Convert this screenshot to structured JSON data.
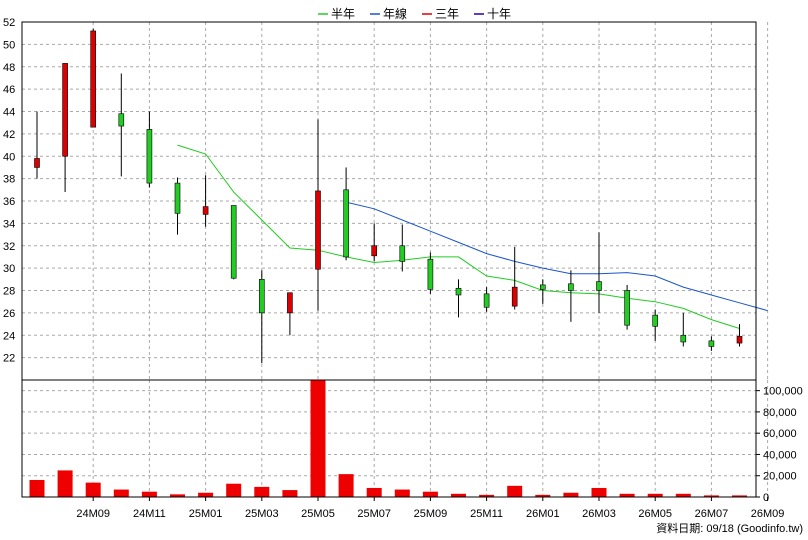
{
  "legend": [
    {
      "name": "半年",
      "color": "#22cc22"
    },
    {
      "name": "年線",
      "color": "#1a55cc"
    },
    {
      "name": "三年",
      "color": "#dd0000"
    },
    {
      "name": "十年",
      "color": "#2200aa"
    }
  ],
  "footer": {
    "text": "資料日期: 09/18  (Goodinfo.tw)"
  },
  "chart_data": {
    "type": "candlestick",
    "x_tick_labels": [
      "24M09",
      "24M11",
      "25M01",
      "25M03",
      "25M05",
      "25M07",
      "25M09",
      "25M11",
      "26M01",
      "26M03",
      "26M05",
      "26M07",
      "26M09"
    ],
    "x_tick_month_index": [
      2,
      4,
      6,
      8,
      10,
      12,
      14,
      16,
      18,
      20,
      22,
      24,
      26
    ],
    "price_axis": {
      "min": 20,
      "max": 52,
      "ticks": [
        22,
        24,
        26,
        28,
        30,
        32,
        34,
        36,
        38,
        40,
        42,
        44,
        46,
        48,
        50,
        52
      ]
    },
    "volume_axis": {
      "min": 0,
      "max": 110000,
      "ticks": [
        0,
        20000,
        40000,
        60000,
        80000,
        100000
      ],
      "tick_labels": [
        "0",
        "20,000",
        "40,000",
        "60,000",
        "80,000",
        "100,000"
      ]
    },
    "grid": true,
    "candles": [
      {
        "open": 39.0,
        "close": 39.8,
        "high": 44.0,
        "low": 38.0,
        "volume": 16000
      },
      {
        "open": 40.0,
        "close": 48.3,
        "high": 48.3,
        "low": 36.8,
        "volume": 25000
      },
      {
        "open": 42.6,
        "close": 51.2,
        "high": 51.4,
        "low": 42.6,
        "volume": 13500
      },
      {
        "open": 43.8,
        "close": 42.7,
        "high": 47.4,
        "low": 38.2,
        "volume": 7000
      },
      {
        "open": 42.4,
        "close": 37.6,
        "high": 44.0,
        "low": 37.2,
        "volume": 5000
      },
      {
        "open": 37.6,
        "close": 34.9,
        "high": 38.1,
        "low": 33.0,
        "volume": 2500
      },
      {
        "open": 34.8,
        "close": 35.5,
        "high": 38.3,
        "low": 33.7,
        "volume": 4000
      },
      {
        "open": 35.6,
        "close": 29.1,
        "high": 35.6,
        "low": 29.0,
        "volume": 12500
      },
      {
        "open": 29.0,
        "close": 26.0,
        "high": 29.8,
        "low": 21.5,
        "volume": 9500
      },
      {
        "open": 26.0,
        "close": 27.8,
        "high": 27.8,
        "low": 24.0,
        "volume": 6500
      },
      {
        "open": 29.9,
        "close": 36.9,
        "high": 43.3,
        "low": 26.2,
        "volume": 110000
      },
      {
        "open": 37.0,
        "close": 31.0,
        "high": 39.0,
        "low": 30.7,
        "volume": 21500
      },
      {
        "open": 31.1,
        "close": 32.0,
        "high": 34.0,
        "low": 30.6,
        "volume": 8500
      },
      {
        "open": 32.0,
        "close": 30.6,
        "high": 33.9,
        "low": 29.7,
        "volume": 7000
      },
      {
        "open": 30.8,
        "close": 28.1,
        "high": 31.4,
        "low": 27.7,
        "volume": 5000
      },
      {
        "open": 28.2,
        "close": 27.6,
        "high": 29.0,
        "low": 25.6,
        "volume": 3000
      },
      {
        "open": 27.7,
        "close": 26.5,
        "high": 28.3,
        "low": 26.1,
        "volume": 2000
      },
      {
        "open": 26.6,
        "close": 28.3,
        "high": 31.9,
        "low": 26.3,
        "volume": 10500
      },
      {
        "open": 28.5,
        "close": 28.1,
        "high": 29.0,
        "low": 26.8,
        "volume": 2000
      },
      {
        "open": 28.6,
        "close": 28.0,
        "high": 29.8,
        "low": 25.2,
        "volume": 4000
      },
      {
        "open": 28.8,
        "close": 28.0,
        "high": 33.2,
        "low": 26.0,
        "volume": 8500
      },
      {
        "open": 28.0,
        "close": 24.9,
        "high": 28.5,
        "low": 24.5,
        "volume": 3000
      },
      {
        "open": 25.8,
        "close": 24.8,
        "high": 26.3,
        "low": 23.5,
        "volume": 3000
      },
      {
        "open": 24.0,
        "close": 23.4,
        "high": 26.0,
        "low": 23.0,
        "volume": 3000
      },
      {
        "open": 23.5,
        "close": 23.0,
        "high": 23.9,
        "low": 22.6,
        "volume": 1500
      },
      {
        "open": 23.3,
        "close": 23.9,
        "high": 25.0,
        "low": 23.0,
        "volume": 1500
      }
    ],
    "candle_colors": {
      "up": "#dd0000",
      "down": "#22cc22",
      "volume": "#ee0000"
    },
    "series": [
      {
        "name": "半年",
        "color": "#22cc22",
        "start_index": 5,
        "values": [
          41.0,
          40.2,
          36.8,
          34.3,
          31.8,
          31.6,
          31.0,
          30.5,
          30.7,
          31.0,
          31.0,
          29.3,
          28.9,
          28.0,
          27.8,
          27.7,
          27.3,
          27.0,
          26.4,
          25.4,
          24.6
        ]
      },
      {
        "name": "年線",
        "color": "#1a55cc",
        "start_index": 11,
        "values": [
          35.9,
          35.3,
          34.3,
          33.3,
          32.3,
          31.3,
          30.6,
          30.0,
          29.5,
          29.5,
          29.6,
          29.3,
          28.3,
          27.6,
          26.9,
          26.2
        ]
      }
    ]
  }
}
